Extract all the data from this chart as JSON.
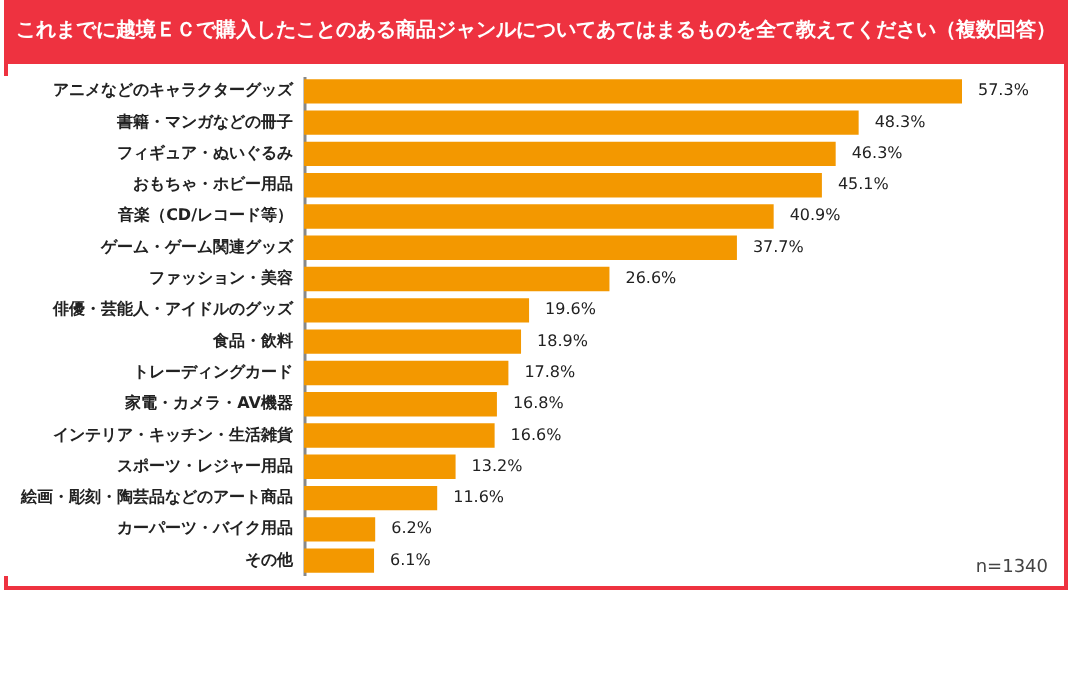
{
  "chart_data": {
    "type": "bar",
    "orientation": "horizontal",
    "title": "これまでに越境ＥＣで購入したことのある商品ジャンルについてあてはまるものを全て教えてください（複数回答）",
    "categories": [
      "アニメなどのキャラクターグッズ",
      "書籍・マンガなどの冊子",
      "フィギュア・ぬいぐるみ",
      "おもちゃ・ホビー用品",
      "音楽（CD/レコード等）",
      "ゲーム・ゲーム関連グッズ",
      "ファッション・美容",
      "俳優・芸能人・アイドルのグッズ",
      "食品・飲料",
      "トレーディングカード",
      "家電・カメラ・AV機器",
      "インテリア・キッチン・生活雑貨",
      "スポーツ・レジャー用品",
      "絵画・彫刻・陶芸品などのアート商品",
      "カーパーツ・バイク用品",
      "その他"
    ],
    "values": [
      57.3,
      48.3,
      46.3,
      45.1,
      40.9,
      37.7,
      26.6,
      19.6,
      18.9,
      17.8,
      16.8,
      16.6,
      13.2,
      11.6,
      6.2,
      6.1
    ],
    "value_labels": [
      "57.3%",
      "48.3%",
      "46.3%",
      "45.1%",
      "40.9%",
      "37.7%",
      "26.6%",
      "19.6%",
      "18.9%",
      "17.8%",
      "16.8%",
      "16.6%",
      "13.2%",
      "11.6%",
      "6.2%",
      "6.1%"
    ],
    "color": "#f39800",
    "annotations": [
      "n=1340"
    ]
  }
}
